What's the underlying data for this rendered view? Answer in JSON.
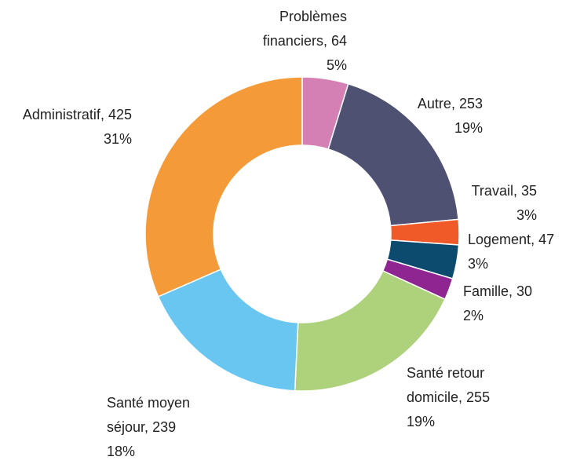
{
  "chart_data": {
    "type": "donut",
    "categories": [
      "Problèmes financiers",
      "Autre",
      "Travail",
      "Logement",
      "Famille",
      "Santé retour domicile",
      "Santé moyen séjour",
      "Administratif"
    ],
    "values": [
      64,
      253,
      35,
      47,
      30,
      255,
      239,
      425
    ],
    "value_labels": [
      "5%",
      "19%",
      "3%",
      "3%",
      "2%",
      "19%",
      "18%",
      "31%"
    ],
    "colors": [
      "#d580b5",
      "#4f5173",
      "#f05a28",
      "#0c4a6e",
      "#8e2590",
      "#aed17b",
      "#68c6f0",
      "#f59a38"
    ]
  }
}
